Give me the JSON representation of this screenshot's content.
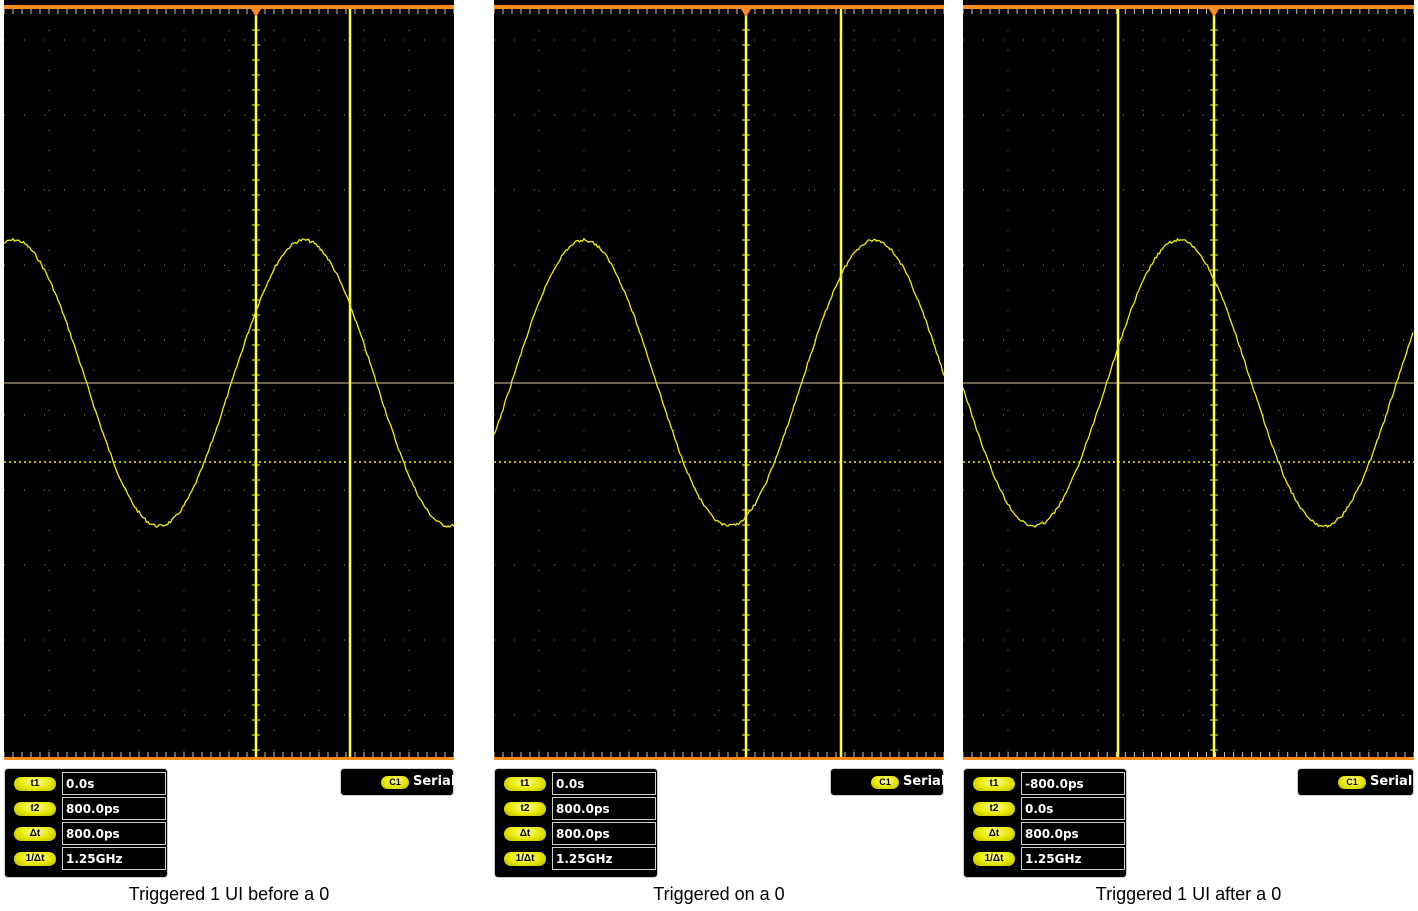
{
  "colors": {
    "trace": "#f0f000",
    "cursor": "#ffff33",
    "grid": "#9a9a6a",
    "frame": "#ff8c1a",
    "axis": "#d8c8a0"
  },
  "panels": [
    {
      "caption": "Triggered 1 UI before a 0",
      "channel": {
        "badge": "C1",
        "label": "Serial"
      },
      "readouts": [
        {
          "label": "t1",
          "value": "0.0s"
        },
        {
          "label": "t2",
          "value": "800.0ps"
        },
        {
          "label": "Δt",
          "value": "800.0ps"
        },
        {
          "label": "1/Δt",
          "value": "1.25GHz"
        }
      ]
    },
    {
      "caption": "Triggered on a 0",
      "channel": {
        "badge": "C1",
        "label": "Serial"
      },
      "readouts": [
        {
          "label": "t1",
          "value": "0.0s"
        },
        {
          "label": "t2",
          "value": "800.0ps"
        },
        {
          "label": "Δt",
          "value": "800.0ps"
        },
        {
          "label": "1/Δt",
          "value": "1.25GHz"
        }
      ]
    },
    {
      "caption": "Triggered 1 UI after a 0",
      "channel": {
        "badge": "C1",
        "label": "Serial"
      },
      "readouts": [
        {
          "label": "t1",
          "value": "-800.0ps"
        },
        {
          "label": "t2",
          "value": "0.0s"
        },
        {
          "label": "Δt",
          "value": "800.0ps"
        },
        {
          "label": "1/Δt",
          "value": "1.25GHz"
        }
      ]
    }
  ]
}
